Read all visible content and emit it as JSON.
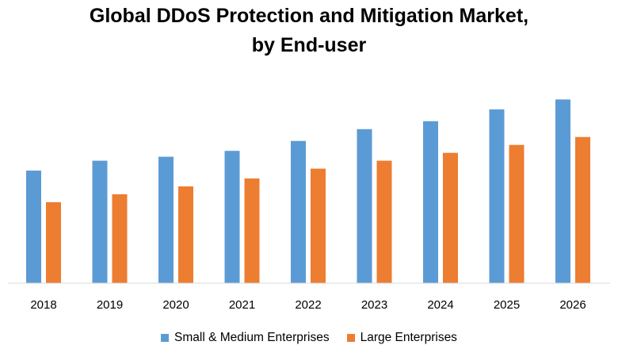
{
  "chart_data": {
    "type": "bar",
    "title_line1": "Global DDoS Protection and Mitigation Market,",
    "title_line2": "by End-user",
    "categories": [
      "2018",
      "2019",
      "2020",
      "2021",
      "2022",
      "2023",
      "2024",
      "2025",
      "2026"
    ],
    "series": [
      {
        "name": "Small & Medium Enterprises",
        "color": "#5B9BD5",
        "values": [
          57,
          62,
          64,
          67,
          72,
          78,
          82,
          88,
          93
        ]
      },
      {
        "name": "Large Enterprises",
        "color": "#ED7D31",
        "values": [
          41,
          45,
          49,
          53,
          58,
          62,
          66,
          70,
          74
        ]
      }
    ],
    "xlabel": "",
    "ylabel": "",
    "ylim": [
      0,
      100
    ],
    "grid": false,
    "legend_position": "bottom"
  }
}
